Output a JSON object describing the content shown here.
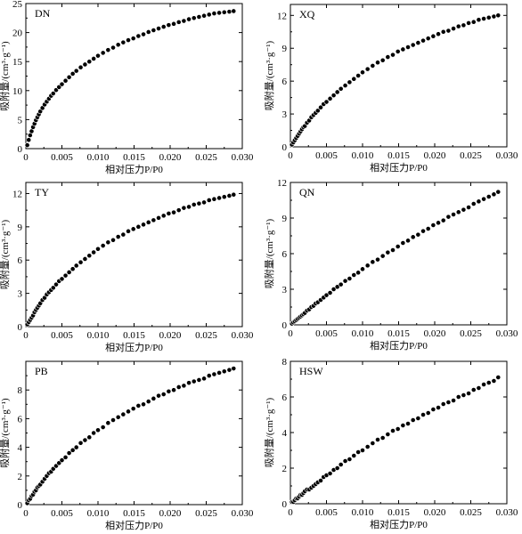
{
  "figure": {
    "panel_order": [
      "DN",
      "XQ",
      "TY",
      "QN",
      "PB",
      "HSW"
    ]
  },
  "chart_data": [
    {
      "type": "scatter",
      "title": "DN",
      "xlabel": "相对压力P/P0",
      "ylabel": "吸附量/(cm³·g⁻¹)",
      "xlim": [
        0,
        0.03
      ],
      "ylim": [
        0,
        25
      ],
      "xticks": [
        "0",
        "0.005",
        "0.010",
        "0.015",
        "0.020",
        "0.025",
        "0.030"
      ],
      "yticks": [
        "0",
        "5",
        "10",
        "15",
        "20",
        "25"
      ],
      "grid": false,
      "marker_fill": "#000000",
      "series": [
        {
          "x": [
            0.0002,
            0.0004,
            0.0006,
            0.0008,
            0.001,
            0.0012,
            0.0014,
            0.0016,
            0.0018,
            0.002,
            0.0023,
            0.0026,
            0.0029,
            0.0032,
            0.0035,
            0.0038,
            0.0042,
            0.0046,
            0.005,
            0.0055,
            0.006,
            0.0065,
            0.007,
            0.0076,
            0.0082,
            0.0088,
            0.0094,
            0.01,
            0.0107,
            0.0114,
            0.0121,
            0.0128,
            0.0135,
            0.0142,
            0.0149,
            0.0156,
            0.0163,
            0.017,
            0.0177,
            0.0184,
            0.0191,
            0.0198,
            0.0205,
            0.0212,
            0.0219,
            0.0226,
            0.0233,
            0.024,
            0.0247,
            0.0254,
            0.0261,
            0.0268,
            0.0275,
            0.0282,
            0.0288
          ],
          "y": [
            0.6,
            1.5,
            2.3,
            3.0,
            3.7,
            4.3,
            4.9,
            5.4,
            5.9,
            6.4,
            7.0,
            7.6,
            8.1,
            8.6,
            9.1,
            9.5,
            10.1,
            10.6,
            11.1,
            11.7,
            12.3,
            12.9,
            13.4,
            14.0,
            14.5,
            15.0,
            15.5,
            16.0,
            16.5,
            17.0,
            17.4,
            17.9,
            18.3,
            18.7,
            19.0,
            19.4,
            19.7,
            20.1,
            20.4,
            20.7,
            21.0,
            21.3,
            21.5,
            21.8,
            22.0,
            22.3,
            22.5,
            22.7,
            22.9,
            23.1,
            23.3,
            23.4,
            23.5,
            23.6,
            23.7
          ]
        }
      ]
    },
    {
      "type": "scatter",
      "title": "XQ",
      "xlabel": "相对压力P/P0",
      "ylabel": "吸附量/(cm³·g⁻¹)",
      "xlim": [
        0,
        0.03
      ],
      "ylim": [
        0,
        13
      ],
      "xticks": [
        "0",
        "0.005",
        "0.010",
        "0.015",
        "0.020",
        "0.025",
        "0.030"
      ],
      "yticks": [
        "0",
        "3",
        "6",
        "9",
        "12"
      ],
      "grid": false,
      "marker_fill": "#000000",
      "series": [
        {
          "x": [
            0.0002,
            0.0004,
            0.0006,
            0.0008,
            0.001,
            0.0012,
            0.0014,
            0.0016,
            0.0018,
            0.002,
            0.0023,
            0.0026,
            0.0029,
            0.0032,
            0.0035,
            0.0038,
            0.0042,
            0.0046,
            0.005,
            0.0055,
            0.006,
            0.0065,
            0.007,
            0.0076,
            0.0082,
            0.0088,
            0.0094,
            0.01,
            0.0107,
            0.0114,
            0.0121,
            0.0128,
            0.0135,
            0.0142,
            0.0149,
            0.0156,
            0.0163,
            0.017,
            0.0177,
            0.0184,
            0.0191,
            0.0198,
            0.0205,
            0.0212,
            0.0219,
            0.0226,
            0.0233,
            0.024,
            0.0247,
            0.0254,
            0.0261,
            0.0268,
            0.0275,
            0.0282,
            0.0288
          ],
          "y": [
            0.2,
            0.4,
            0.6,
            0.8,
            1.0,
            1.2,
            1.4,
            1.6,
            1.8,
            1.9,
            2.2,
            2.4,
            2.7,
            2.9,
            3.1,
            3.3,
            3.6,
            3.9,
            4.1,
            4.4,
            4.7,
            5.0,
            5.3,
            5.6,
            5.9,
            6.2,
            6.5,
            6.8,
            7.1,
            7.4,
            7.7,
            7.9,
            8.2,
            8.4,
            8.7,
            8.9,
            9.1,
            9.3,
            9.5,
            9.7,
            9.9,
            10.1,
            10.3,
            10.5,
            10.6,
            10.8,
            11.0,
            11.1,
            11.3,
            11.4,
            11.6,
            11.7,
            11.8,
            11.9,
            12.0
          ]
        }
      ]
    },
    {
      "type": "scatter",
      "title": "TY",
      "xlabel": "相对压力P/P0",
      "ylabel": "吸附量/(cm³·g⁻¹)",
      "xlim": [
        0,
        0.03
      ],
      "ylim": [
        0,
        13
      ],
      "xticks": [
        "0",
        "0.005",
        "0.010",
        "0.015",
        "0.020",
        "0.025",
        "0.030"
      ],
      "yticks": [
        "0",
        "3",
        "6",
        "9",
        "12"
      ],
      "grid": false,
      "marker_fill": "#000000",
      "series": [
        {
          "x": [
            0.0002,
            0.0004,
            0.0006,
            0.0008,
            0.001,
            0.0012,
            0.0014,
            0.0016,
            0.0018,
            0.002,
            0.0023,
            0.0026,
            0.0029,
            0.0032,
            0.0035,
            0.0038,
            0.0042,
            0.0046,
            0.005,
            0.0055,
            0.006,
            0.0065,
            0.007,
            0.0076,
            0.0082,
            0.0088,
            0.0094,
            0.01,
            0.0107,
            0.0114,
            0.0121,
            0.0128,
            0.0135,
            0.0142,
            0.0149,
            0.0156,
            0.0163,
            0.017,
            0.0177,
            0.0184,
            0.0191,
            0.0198,
            0.0205,
            0.0212,
            0.0219,
            0.0226,
            0.0233,
            0.024,
            0.0247,
            0.0254,
            0.0261,
            0.0268,
            0.0275,
            0.0282,
            0.0288
          ],
          "y": [
            0.2,
            0.4,
            0.6,
            0.8,
            1.0,
            1.3,
            1.5,
            1.7,
            1.9,
            2.1,
            2.4,
            2.6,
            2.9,
            3.1,
            3.3,
            3.5,
            3.8,
            4.1,
            4.3,
            4.6,
            4.9,
            5.2,
            5.5,
            5.8,
            6.1,
            6.4,
            6.7,
            7.0,
            7.3,
            7.6,
            7.8,
            8.1,
            8.3,
            8.6,
            8.8,
            9.0,
            9.2,
            9.4,
            9.6,
            9.8,
            10.0,
            10.2,
            10.3,
            10.5,
            10.7,
            10.8,
            11.0,
            11.1,
            11.2,
            11.4,
            11.5,
            11.6,
            11.7,
            11.8,
            11.9
          ]
        }
      ]
    },
    {
      "type": "scatter",
      "title": "QN",
      "xlabel": "相对压力P/P0",
      "ylabel": "吸附量/(cm³·g⁻¹)",
      "xlim": [
        0,
        0.03
      ],
      "ylim": [
        0,
        12
      ],
      "xticks": [
        "0",
        "0.005",
        "0.010",
        "0.015",
        "0.020",
        "0.025",
        "0.030"
      ],
      "yticks": [
        "0",
        "3",
        "6",
        "9",
        "12"
      ],
      "grid": false,
      "marker_fill": "#000000",
      "series": [
        {
          "x": [
            0.0002,
            0.0004,
            0.0006,
            0.0008,
            0.001,
            0.0012,
            0.0014,
            0.0016,
            0.0018,
            0.002,
            0.0023,
            0.0026,
            0.0029,
            0.0032,
            0.0035,
            0.0038,
            0.0042,
            0.0046,
            0.005,
            0.0055,
            0.006,
            0.0065,
            0.007,
            0.0076,
            0.0082,
            0.0088,
            0.0094,
            0.01,
            0.0107,
            0.0114,
            0.0121,
            0.0128,
            0.0135,
            0.0142,
            0.0149,
            0.0156,
            0.0163,
            0.017,
            0.0177,
            0.0184,
            0.0191,
            0.0198,
            0.0205,
            0.0212,
            0.0219,
            0.0226,
            0.0233,
            0.024,
            0.0247,
            0.0254,
            0.0261,
            0.0268,
            0.0275,
            0.0282,
            0.0288
          ],
          "y": [
            0.1,
            0.2,
            0.3,
            0.4,
            0.5,
            0.6,
            0.7,
            0.8,
            0.9,
            1.0,
            1.2,
            1.3,
            1.5,
            1.6,
            1.8,
            1.9,
            2.1,
            2.3,
            2.5,
            2.7,
            3.0,
            3.2,
            3.4,
            3.7,
            3.9,
            4.2,
            4.4,
            4.7,
            5.0,
            5.3,
            5.5,
            5.8,
            6.1,
            6.3,
            6.6,
            6.9,
            7.1,
            7.4,
            7.6,
            7.9,
            8.1,
            8.4,
            8.6,
            8.8,
            9.1,
            9.3,
            9.5,
            9.7,
            9.9,
            10.2,
            10.4,
            10.6,
            10.8,
            11.0,
            11.2
          ]
        }
      ]
    },
    {
      "type": "scatter",
      "title": "PB",
      "xlabel": "相对压力P/P0",
      "ylabel": "吸附量/(cm³·g⁻¹)",
      "xlim": [
        0,
        0.03
      ],
      "ylim": [
        0,
        10
      ],
      "xticks": [
        "0",
        "0.005",
        "0.010",
        "0.015",
        "0.020",
        "0.025",
        "0.030"
      ],
      "yticks": [
        "0",
        "2",
        "4",
        "6",
        "8"
      ],
      "grid": false,
      "marker_fill": "#000000",
      "series": [
        {
          "x": [
            0.0002,
            0.0004,
            0.0006,
            0.0008,
            0.001,
            0.0012,
            0.0014,
            0.0016,
            0.0018,
            0.002,
            0.0023,
            0.0026,
            0.0029,
            0.0032,
            0.0035,
            0.0038,
            0.0042,
            0.0046,
            0.005,
            0.0055,
            0.006,
            0.0065,
            0.007,
            0.0076,
            0.0082,
            0.0088,
            0.0094,
            0.01,
            0.0107,
            0.0114,
            0.0121,
            0.0128,
            0.0135,
            0.0142,
            0.0149,
            0.0156,
            0.0163,
            0.017,
            0.0177,
            0.0184,
            0.0191,
            0.0198,
            0.0205,
            0.0212,
            0.0219,
            0.0226,
            0.0233,
            0.024,
            0.0247,
            0.0254,
            0.0261,
            0.0268,
            0.0275,
            0.0282,
            0.0288
          ],
          "y": [
            0.1,
            0.3,
            0.4,
            0.6,
            0.7,
            0.9,
            1.0,
            1.2,
            1.3,
            1.4,
            1.6,
            1.8,
            2.0,
            2.2,
            2.3,
            2.5,
            2.7,
            2.9,
            3.1,
            3.3,
            3.6,
            3.8,
            4.0,
            4.3,
            4.5,
            4.7,
            5.0,
            5.2,
            5.4,
            5.7,
            5.9,
            6.1,
            6.3,
            6.5,
            6.7,
            6.9,
            7.0,
            7.2,
            7.4,
            7.6,
            7.7,
            7.9,
            8.0,
            8.2,
            8.3,
            8.5,
            8.6,
            8.7,
            8.8,
            9.0,
            9.1,
            9.2,
            9.3,
            9.4,
            9.5
          ]
        }
      ]
    },
    {
      "type": "scatter",
      "title": "HSW",
      "xlabel": "相对压力P/P0",
      "ylabel": "吸附量/(cm³·g⁻¹)",
      "xlim": [
        0,
        0.03
      ],
      "ylim": [
        0,
        8
      ],
      "xticks": [
        "0",
        "0.005",
        "0.010",
        "0.015",
        "0.020",
        "0.025",
        "0.030"
      ],
      "yticks": [
        "0",
        "2",
        "4",
        "6",
        "8"
      ],
      "grid": false,
      "marker_fill": "#000000",
      "series": [
        {
          "x": [
            0.0002,
            0.0004,
            0.0006,
            0.0008,
            0.001,
            0.0012,
            0.0014,
            0.0016,
            0.0018,
            0.002,
            0.0023,
            0.0026,
            0.0029,
            0.0032,
            0.0035,
            0.0038,
            0.0042,
            0.0046,
            0.005,
            0.0055,
            0.006,
            0.0065,
            0.007,
            0.0076,
            0.0082,
            0.0088,
            0.0094,
            0.01,
            0.0107,
            0.0114,
            0.0121,
            0.0128,
            0.0135,
            0.0142,
            0.0149,
            0.0156,
            0.0163,
            0.017,
            0.0177,
            0.0184,
            0.0191,
            0.0198,
            0.0205,
            0.0212,
            0.0219,
            0.0226,
            0.0233,
            0.024,
            0.0247,
            0.0254,
            0.0261,
            0.0268,
            0.0275,
            0.0282,
            0.0288
          ],
          "y": [
            0.1,
            0.1,
            0.2,
            0.3,
            0.3,
            0.4,
            0.5,
            0.5,
            0.6,
            0.7,
            0.8,
            0.8,
            0.9,
            1.0,
            1.1,
            1.2,
            1.3,
            1.5,
            1.6,
            1.7,
            1.9,
            2.0,
            2.2,
            2.4,
            2.5,
            2.7,
            2.9,
            3.0,
            3.2,
            3.4,
            3.6,
            3.7,
            3.9,
            4.1,
            4.2,
            4.4,
            4.5,
            4.7,
            4.8,
            5.0,
            5.1,
            5.3,
            5.4,
            5.6,
            5.7,
            5.8,
            6.0,
            6.1,
            6.2,
            6.4,
            6.5,
            6.7,
            6.8,
            6.9,
            7.1
          ]
        }
      ]
    }
  ]
}
